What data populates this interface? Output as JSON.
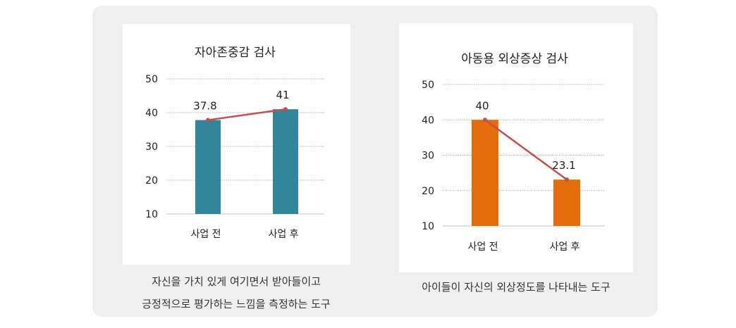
{
  "chart_data": [
    {
      "type": "bar",
      "title": "자아존중감  검사",
      "categories": [
        "사업 전",
        "사업 후"
      ],
      "values": [
        37.8,
        41
      ],
      "data_labels": [
        "37.8",
        "41"
      ],
      "yticks": [
        "10",
        "20",
        "30",
        "40",
        "50"
      ],
      "ylim": [
        10,
        50
      ],
      "overlay_line": true,
      "grid": true,
      "colors": {
        "bar": "#31869b",
        "line": "#c0504d"
      },
      "caption_lines": [
        "자신을 가치 있게 여기면서 받아들이고",
        "긍정적으로 평가하는 느낌을 측정하는 도구"
      ]
    },
    {
      "type": "bar",
      "title": "아동용 외상증상 검사",
      "categories": [
        "사업 전",
        "사업 후"
      ],
      "values": [
        40,
        23.1
      ],
      "data_labels": [
        "40",
        "23.1"
      ],
      "yticks": [
        "10",
        "20",
        "30",
        "40",
        "50"
      ],
      "ylim": [
        10,
        50
      ],
      "overlay_line": true,
      "grid": true,
      "colors": {
        "bar": "#e46c0a",
        "line": "#c0504d"
      },
      "caption_lines": [
        "아이들이 자신의 외상정도를 나타내는 도구"
      ]
    }
  ]
}
